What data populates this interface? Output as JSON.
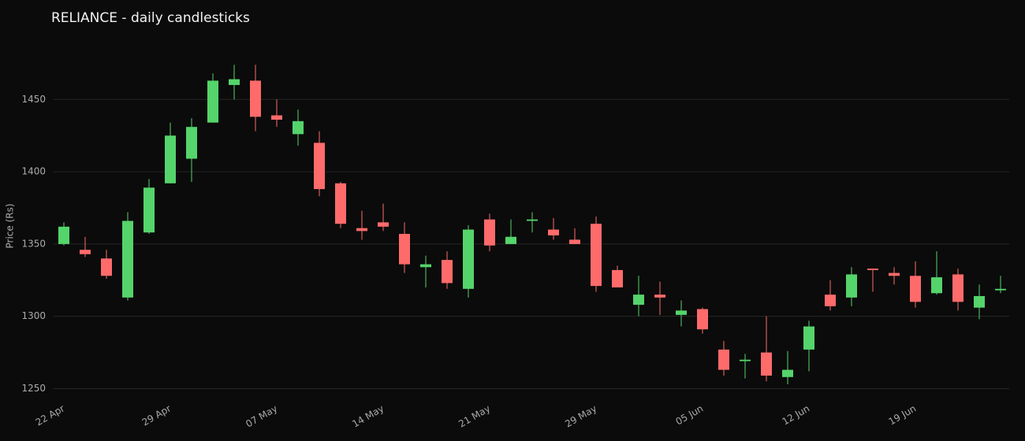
{
  "chart_data": {
    "type": "candlestick",
    "title": "RELIANCE - daily candlesticks",
    "y_label": "Price (Rs)",
    "categories": [
      "22 Apr",
      null,
      null,
      null,
      null,
      "29 Apr",
      null,
      null,
      null,
      null,
      "07 May",
      null,
      null,
      null,
      null,
      "14 May",
      null,
      null,
      null,
      null,
      "21 May",
      null,
      null,
      null,
      null,
      "29 May",
      null,
      null,
      null,
      null,
      "05 Jun",
      null,
      null,
      null,
      null,
      "12 Jun",
      null,
      null,
      null,
      null,
      "19 Jun",
      null,
      null,
      null,
      null
    ],
    "open": [
      1350,
      1346,
      1340,
      1313,
      1358,
      1392,
      1409,
      1434,
      1460,
      1463,
      1439,
      1426,
      1420,
      1392,
      1361,
      1365,
      1357,
      1334,
      1339,
      1319,
      1367,
      1350,
      1366,
      1360,
      1353,
      1364,
      1332,
      1308,
      1315,
      1301,
      1305,
      1277,
      1269,
      1275,
      1258,
      1277,
      1315,
      1313,
      1333,
      1330,
      1328,
      1316,
      1329,
      1306,
      1318
    ],
    "high": [
      1365,
      1355,
      1346,
      1372,
      1395,
      1434,
      1437,
      1468,
      1474,
      1474,
      1450,
      1443,
      1428,
      1393,
      1373,
      1378,
      1365,
      1342,
      1345,
      1363,
      1371,
      1367,
      1372,
      1368,
      1361,
      1369,
      1335,
      1328,
      1324,
      1311,
      1306,
      1283,
      1274,
      1300,
      1276,
      1297,
      1325,
      1334,
      1333,
      1334,
      1338,
      1345,
      1333,
      1322,
      1328
    ],
    "low": [
      1349,
      1341,
      1326,
      1311,
      1357,
      1392,
      1393,
      1434,
      1450,
      1428,
      1431,
      1418,
      1383,
      1361,
      1353,
      1359,
      1330,
      1320,
      1319,
      1313,
      1345,
      1350,
      1358,
      1353,
      1350,
      1317,
      1320,
      1300,
      1301,
      1293,
      1288,
      1259,
      1257,
      1255,
      1253,
      1262,
      1304,
      1307,
      1317,
      1322,
      1306,
      1315,
      1304,
      1298,
      1316
    ],
    "close": [
      1362,
      1343,
      1328,
      1366,
      1389,
      1425,
      1431,
      1463,
      1464,
      1438,
      1436,
      1435,
      1388,
      1364,
      1359,
      1362,
      1336,
      1336,
      1323,
      1360,
      1349,
      1355,
      1367,
      1356,
      1350,
      1321,
      1320,
      1315,
      1313,
      1304,
      1291,
      1263,
      1270,
      1259,
      1263,
      1293,
      1307,
      1329,
      1332,
      1328,
      1310,
      1327,
      1310,
      1314,
      1319
    ],
    "increasing_color": "#55d46b",
    "decreasing_color": "#ff6b6b",
    "ylim": [
      1241,
      1497
    ],
    "yticks": [
      1250,
      1300,
      1350,
      1400,
      1450
    ],
    "grid": true
  }
}
